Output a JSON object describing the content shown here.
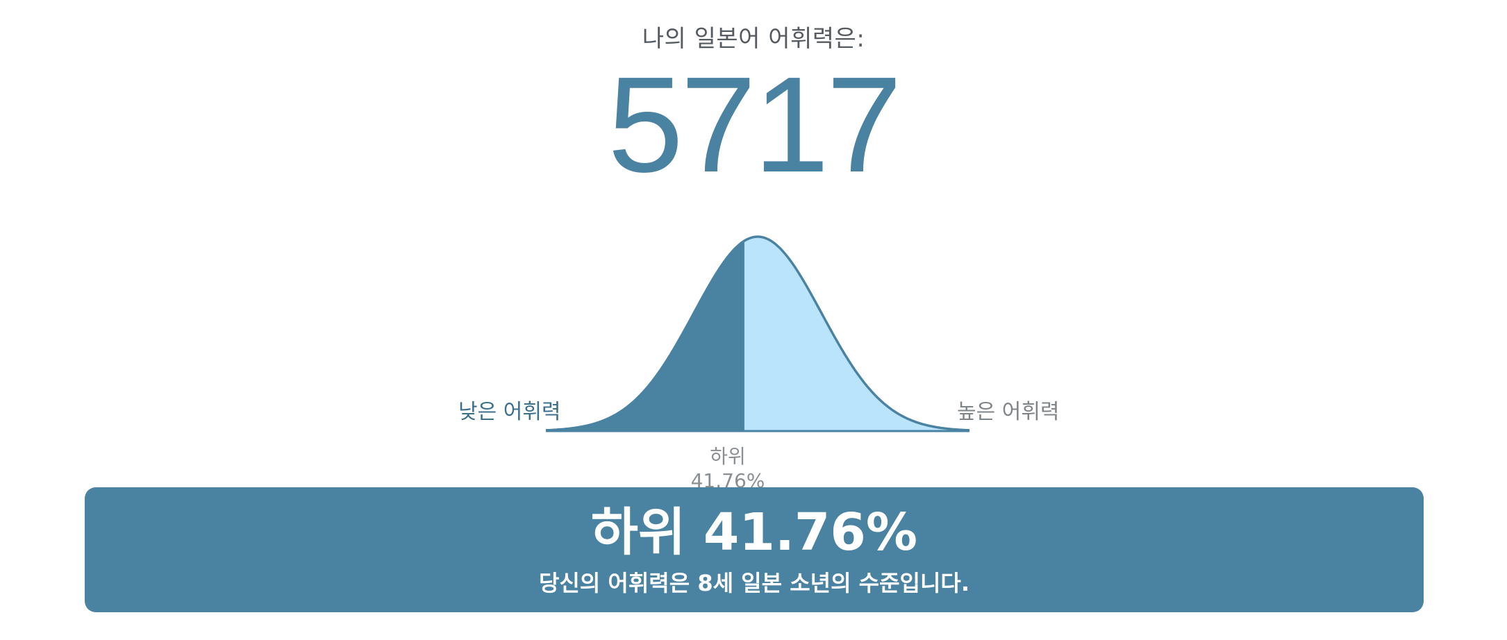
{
  "result": {
    "heading": "나의 일본어 어휘력은:",
    "score": "5717",
    "label_low": "낮은 어휘력",
    "label_high": "높은 어휘력",
    "percentile_label": "하위 41.76%",
    "percentile_fraction": 0.4176
  },
  "banner": {
    "title": "하위 41.76%",
    "subtitle": "당신의 어휘력은 8세 일본 소년의 수준입니다."
  },
  "colors": {
    "accent": "#4a82a2",
    "light_fill": "#b9e4fb",
    "muted_text": "#8a8f94"
  }
}
